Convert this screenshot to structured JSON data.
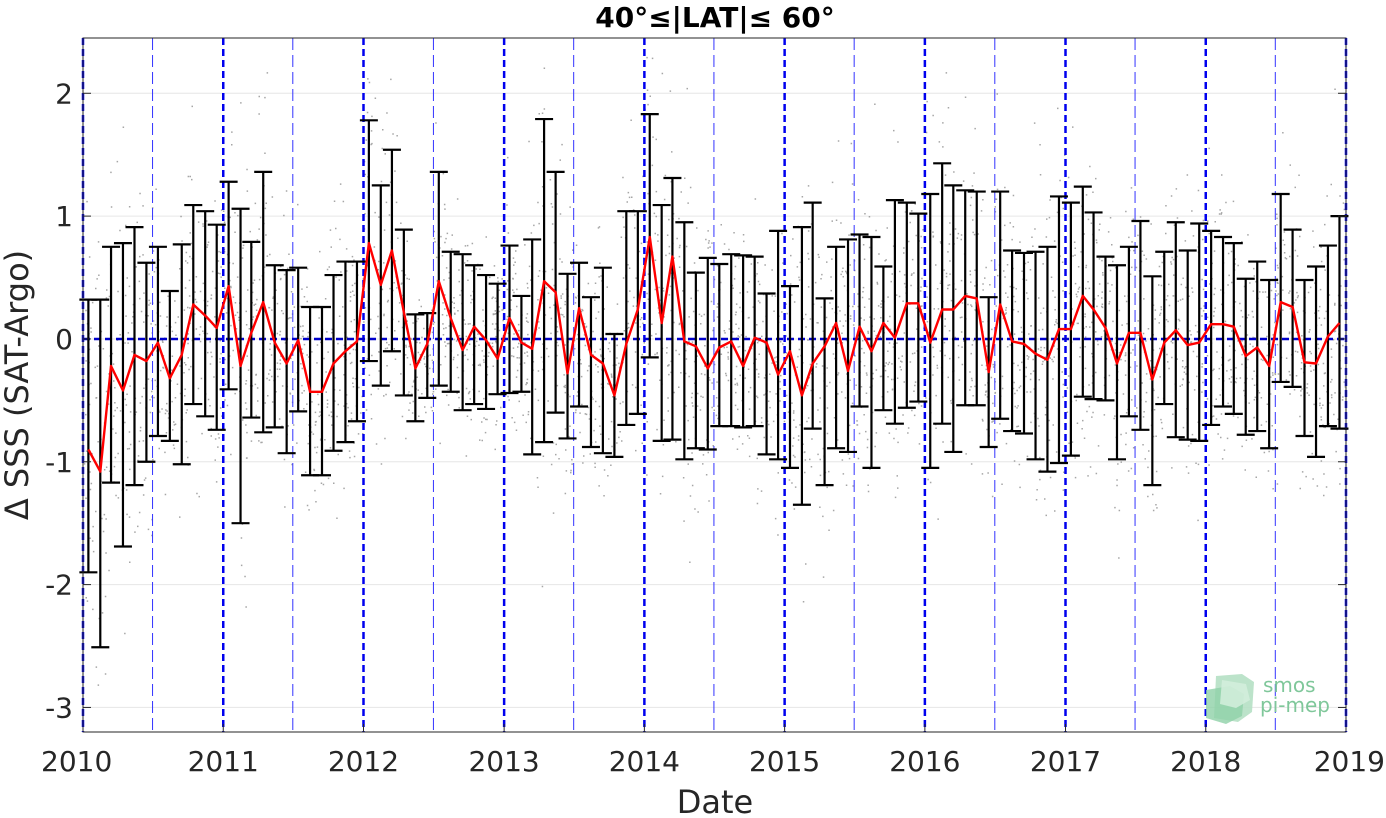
{
  "chart_data": {
    "type": "line",
    "title": "40°≤|LAT|≤ 60°",
    "xlabel": "Date",
    "ylabel": "Δ SSS (SAT-Argo)",
    "xlim": [
      "2010-01-01",
      "2019-01-01"
    ],
    "ylim": [
      -3.2,
      2.45
    ],
    "x_ticks": [
      "2010",
      "2011",
      "2012",
      "2013",
      "2014",
      "2015",
      "2016",
      "2017",
      "2018",
      "2019"
    ],
    "y_ticks": [
      2,
      1,
      0,
      -1,
      -2,
      -3
    ],
    "y_tick_labels": [
      "2",
      "1",
      "0",
      "-1",
      "-2",
      "-3"
    ],
    "grid": true,
    "zero_reference_line": 0,
    "year_start_lines": [
      "2010-01-01",
      "2011-01-01",
      "2012-01-01",
      "2013-01-01",
      "2014-01-01",
      "2015-01-01",
      "2016-01-01",
      "2017-01-01",
      "2018-01-01",
      "2019-01-01"
    ],
    "mid_year_lines": [
      "2010-07-01",
      "2011-07-01",
      "2012-07-01",
      "2013-07-01",
      "2014-07-01",
      "2015-07-01",
      "2016-07-01",
      "2017-07-01",
      "2018-07-01"
    ],
    "series": [
      {
        "x": [
          "2010-01-15",
          "2010-02-15",
          "2010-03-15",
          "2010-04-15",
          "2010-05-15",
          "2010-06-15",
          "2010-07-15",
          "2010-08-15",
          "2010-09-15",
          "2010-10-15",
          "2010-11-15",
          "2010-12-15",
          "2011-01-15",
          "2011-02-15",
          "2011-03-15",
          "2011-04-15",
          "2011-05-15",
          "2011-06-15",
          "2011-07-15",
          "2011-08-15",
          "2011-09-15",
          "2011-10-15",
          "2011-11-15",
          "2011-12-15",
          "2012-01-15",
          "2012-02-15",
          "2012-03-15",
          "2012-04-15",
          "2012-05-15",
          "2012-06-15",
          "2012-07-15",
          "2012-08-15",
          "2012-09-15",
          "2012-10-15",
          "2012-11-15",
          "2012-12-15",
          "2013-01-15",
          "2013-02-15",
          "2013-03-15",
          "2013-04-15",
          "2013-05-15",
          "2013-06-15",
          "2013-07-15",
          "2013-08-15",
          "2013-09-15",
          "2013-10-15",
          "2013-11-15",
          "2013-12-15",
          "2014-01-15",
          "2014-02-15",
          "2014-03-15",
          "2014-04-15",
          "2014-05-15",
          "2014-06-15",
          "2014-07-15",
          "2014-08-15",
          "2014-09-15",
          "2014-10-15",
          "2014-11-15",
          "2014-12-15",
          "2015-01-15",
          "2015-02-15",
          "2015-03-15",
          "2015-04-15",
          "2015-05-15",
          "2015-06-15",
          "2015-07-15",
          "2015-08-15",
          "2015-09-15",
          "2015-10-15",
          "2015-11-15",
          "2015-12-15",
          "2016-01-15",
          "2016-02-15",
          "2016-03-15",
          "2016-04-15",
          "2016-05-15",
          "2016-06-15",
          "2016-07-15",
          "2016-08-15",
          "2016-09-15",
          "2016-10-15",
          "2016-11-15",
          "2016-12-15",
          "2017-01-15",
          "2017-02-15",
          "2017-03-15",
          "2017-04-15",
          "2017-05-15",
          "2017-06-15",
          "2017-07-15",
          "2017-08-15",
          "2017-09-15",
          "2017-10-15",
          "2017-11-15",
          "2017-12-15",
          "2018-01-15",
          "2018-02-15",
          "2018-03-15",
          "2018-04-15",
          "2018-05-15",
          "2018-06-15",
          "2018-07-15",
          "2018-08-15",
          "2018-09-15",
          "2018-10-15",
          "2018-11-15",
          "2018-12-15"
        ],
        "y": [
          -0.9,
          -1.08,
          -0.22,
          -0.42,
          -0.13,
          -0.18,
          -0.03,
          -0.32,
          -0.13,
          0.28,
          0.19,
          0.09,
          0.43,
          -0.22,
          0.05,
          0.3,
          -0.03,
          -0.2,
          -0.01,
          -0.43,
          -0.43,
          -0.2,
          -0.1,
          -0.02,
          0.78,
          0.44,
          0.72,
          0.22,
          -0.24,
          -0.04,
          0.47,
          0.17,
          -0.09,
          0.1,
          -0.01,
          -0.16,
          0.17,
          -0.03,
          -0.08,
          0.47,
          0.38,
          -0.28,
          0.25,
          -0.13,
          -0.2,
          -0.46,
          -0.04,
          0.24,
          0.83,
          0.13,
          0.67,
          -0.02,
          -0.06,
          -0.24,
          -0.07,
          -0.02,
          -0.22,
          0.01,
          -0.03,
          -0.29,
          -0.1,
          -0.46,
          -0.2,
          -0.06,
          0.13,
          -0.26,
          0.1,
          -0.1,
          0.13,
          0.01,
          0.29,
          0.29,
          -0.03,
          0.24,
          0.24,
          0.35,
          0.33,
          -0.27,
          0.28,
          -0.02,
          -0.04,
          -0.12,
          -0.17,
          0.08,
          0.08,
          0.35,
          0.24,
          0.09,
          -0.2,
          0.05,
          0.05,
          -0.33,
          -0.03,
          0.07,
          -0.05,
          -0.03,
          0.12,
          0.12,
          0.1,
          -0.14,
          -0.07,
          -0.22,
          0.3,
          0.26,
          -0.19,
          -0.2,
          0.02,
          0.13
        ],
        "err_upper": [
          0.32,
          0.32,
          0.75,
          0.78,
          0.91,
          0.62,
          0.75,
          0.39,
          0.77,
          1.09,
          1.04,
          0.93,
          1.28,
          1.06,
          0.79,
          1.36,
          0.6,
          0.56,
          0.58,
          0.26,
          0.26,
          0.52,
          0.63,
          0.63,
          1.78,
          1.25,
          1.54,
          0.89,
          0.2,
          0.21,
          1.36,
          0.71,
          0.69,
          0.6,
          0.52,
          0.45,
          0.76,
          0.35,
          0.81,
          1.79,
          1.36,
          0.53,
          0.62,
          0.34,
          0.58,
          0.04,
          1.04,
          1.04,
          1.83,
          1.09,
          1.31,
          0.95,
          0.54,
          0.66,
          0.61,
          0.69,
          0.68,
          0.67,
          0.37,
          0.88,
          0.43,
          0.91,
          1.11,
          0.33,
          0.75,
          0.81,
          0.85,
          0.83,
          0.59,
          1.13,
          1.11,
          1.02,
          1.18,
          1.43,
          1.25,
          1.21,
          1.2,
          0.34,
          1.2,
          0.72,
          0.7,
          0.71,
          0.75,
          1.16,
          1.11,
          1.24,
          1.03,
          0.67,
          0.6,
          0.75,
          0.96,
          0.51,
          0.71,
          0.95,
          0.72,
          0.94,
          0.88,
          0.83,
          0.78,
          0.49,
          0.63,
          0.48,
          1.18,
          0.89,
          0.48,
          0.59,
          0.76,
          1.0
        ],
        "err_lower": [
          -1.9,
          -2.51,
          -1.17,
          -1.69,
          -1.19,
          -1.0,
          -0.79,
          -0.83,
          -1.02,
          -0.53,
          -0.63,
          -0.74,
          -0.41,
          -1.5,
          -0.64,
          -0.76,
          -0.72,
          -0.93,
          -0.59,
          -1.11,
          -1.11,
          -0.91,
          -0.84,
          -0.67,
          -0.18,
          -0.38,
          -0.1,
          -0.46,
          -0.67,
          -0.48,
          -0.38,
          -0.43,
          -0.58,
          -0.53,
          -0.57,
          -0.45,
          -0.44,
          -0.43,
          -0.94,
          -0.84,
          -0.6,
          -0.81,
          -0.55,
          -0.88,
          -0.93,
          -0.96,
          -0.7,
          -0.61,
          -0.15,
          -0.83,
          -0.82,
          -0.98,
          -0.89,
          -0.9,
          -0.71,
          -0.71,
          -0.72,
          -0.71,
          -0.94,
          -0.98,
          -1.05,
          -1.35,
          -0.73,
          -1.19,
          -0.89,
          -0.92,
          -0.55,
          -1.05,
          -0.58,
          -0.69,
          -0.56,
          -0.51,
          -1.05,
          -0.69,
          -0.92,
          -0.54,
          -0.54,
          -0.88,
          -0.65,
          -0.75,
          -0.77,
          -0.98,
          -1.08,
          -1.01,
          -0.95,
          -0.47,
          -0.49,
          -0.5,
          -0.98,
          -0.63,
          -0.74,
          -1.19,
          -0.53,
          -0.8,
          -0.82,
          -0.83,
          -0.7,
          -0.55,
          -0.61,
          -0.78,
          -0.75,
          -0.89,
          -0.35,
          -0.39,
          -0.79,
          -0.96,
          -0.71,
          -0.73
        ]
      }
    ],
    "scatter_background": "dense grey points of individual SAT-Argo differences spread mostly between -1.5 and 2.3"
  },
  "logo": {
    "line1": "smos",
    "line2": "pi-mep"
  },
  "colors": {
    "mean_line": "#ff0000",
    "error_bars": "#000000",
    "year_lines": "#0000ee",
    "mid_year_lines": "#3333ff",
    "zero_line": "#0000cc",
    "scatter": "#888888",
    "grid": "#e6e6e6",
    "logo": "#7fc79a"
  }
}
